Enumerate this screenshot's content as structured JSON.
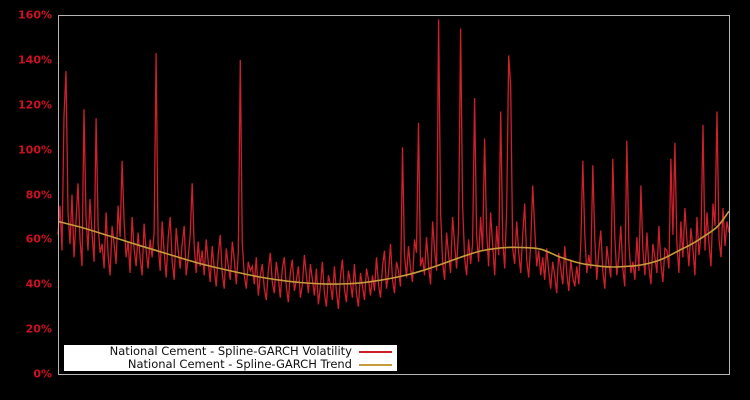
{
  "chart_data": {
    "type": "line",
    "title": "",
    "xlabel": "",
    "ylabel": "",
    "x_axis_labels_visible": false,
    "ylim": [
      0,
      160
    ],
    "ytick_labels": [
      "0%",
      "20%",
      "40%",
      "60%",
      "80%",
      "100%",
      "120%",
      "140%",
      "160%"
    ],
    "ytick_values": [
      0,
      20,
      40,
      60,
      80,
      100,
      120,
      140,
      160
    ],
    "grid": false,
    "legend_position": "bottom-left",
    "units": "percent",
    "series": [
      {
        "name": "National Cement - Spline-GARCH Volatility",
        "color": "#cd1f2c",
        "values": [
          62,
          75,
          55,
          115,
          135,
          72,
          58,
          80,
          52,
          68,
          85,
          60,
          48,
          118,
          70,
          55,
          78,
          62,
          50,
          114,
          66,
          54,
          58,
          47,
          72,
          53,
          44,
          66,
          58,
          49,
          75,
          61,
          95,
          68,
          52,
          59,
          45,
          70,
          56,
          48,
          63,
          52,
          44,
          67,
          55,
          47,
          60,
          52,
          63,
          143,
          58,
          46,
          68,
          54,
          43,
          61,
          70,
          50,
          42,
          65,
          55,
          47,
          58,
          66,
          44,
          52,
          62,
          85,
          57,
          45,
          59,
          48,
          55,
          44,
          60,
          50,
          41,
          57,
          47,
          39,
          53,
          62,
          45,
          38,
          56,
          48,
          42,
          59,
          51,
          40,
          54,
          140,
          58,
          44,
          38,
          50,
          46,
          48,
          40,
          52,
          35,
          44,
          49,
          38,
          33,
          46,
          54,
          41,
          36,
          50,
          43,
          34,
          47,
          52,
          39,
          32,
          45,
          51,
          37,
          42,
          48,
          34,
          40,
          53,
          44,
          36,
          49,
          42,
          35,
          47,
          31,
          39,
          50,
          36,
          30,
          44,
          40,
          33,
          48,
          37,
          29,
          43,
          51,
          38,
          32,
          46,
          41,
          34,
          49,
          36,
          30,
          45,
          39,
          33,
          47,
          42,
          35,
          44,
          37,
          52,
          40,
          34,
          48,
          55,
          38,
          45,
          58,
          42,
          36,
          50,
          46,
          39,
          101,
          53,
          43,
          57,
          47,
          41,
          60,
          54,
          112,
          48,
          52,
          44,
          61,
          48,
          40,
          68,
          55,
          46,
          158,
          72,
          50,
          42,
          63,
          53,
          45,
          70,
          58,
          47,
          65,
          154,
          75,
          52,
          44,
          60,
          49,
          58,
          123,
          62,
          50,
          70,
          55,
          105,
          64,
          48,
          72,
          58,
          44,
          66,
          53,
          117,
          60,
          47,
          74,
          142,
          128,
          56,
          49,
          68,
          54,
          45,
          62,
          76,
          51,
          43,
          58,
          84,
          65,
          48,
          55,
          44,
          52,
          42,
          56,
          46,
          38,
          50,
          44,
          36,
          54,
          47,
          40,
          57,
          45,
          37,
          51,
          43,
          39,
          48,
          40,
          58,
          95,
          62,
          45,
          53,
          47,
          93,
          60,
          42,
          55,
          64,
          46,
          38,
          57,
          49,
          43,
          96,
          61,
          44,
          52,
          66,
          47,
          39,
          104,
          58,
          45,
          50,
          42,
          61,
          46,
          84,
          55,
          44,
          63,
          48,
          40,
          58,
          52,
          45,
          66,
          49,
          41,
          56,
          55,
          47,
          96,
          62,
          103,
          58,
          45,
          68,
          52,
          74,
          60,
          48,
          65,
          56,
          44,
          70,
          53,
          62,
          111,
          55,
          72,
          58,
          48,
          76,
          66,
          117,
          60,
          52,
          74,
          57,
          68,
          63
        ]
      },
      {
        "name": "National Cement - Spline-GARCH Trend",
        "color": "#c69b3c",
        "x": [
          0,
          11,
          21,
          31,
          41,
          51,
          61,
          71,
          81,
          91,
          101,
          111,
          121,
          131,
          141,
          151,
          161,
          171,
          181,
          191,
          201,
          211,
          221,
          231,
          241,
          251,
          261,
          271,
          276,
          281,
          291,
          301,
          311,
          316,
          321,
          329,
          335
        ],
        "values": [
          68,
          65.5,
          62.8,
          60,
          57.2,
          54.5,
          51.8,
          49.2,
          47,
          45,
          43.2,
          41.8,
          40.8,
          40.2,
          40.1,
          40.6,
          41.8,
          43.5,
          45.8,
          48.8,
          52,
          54.8,
          56.2,
          56.4,
          55.6,
          52,
          49.3,
          48,
          47.7,
          47.8,
          48.6,
          51,
          55.5,
          57.7,
          60.5,
          65.5,
          72.5
        ]
      }
    ]
  },
  "colors": {
    "background": "#000000",
    "frame": "#b5b5b5",
    "tick_label": "#cc1122",
    "legend_background": "#ffffff",
    "legend_text": "#111111"
  }
}
